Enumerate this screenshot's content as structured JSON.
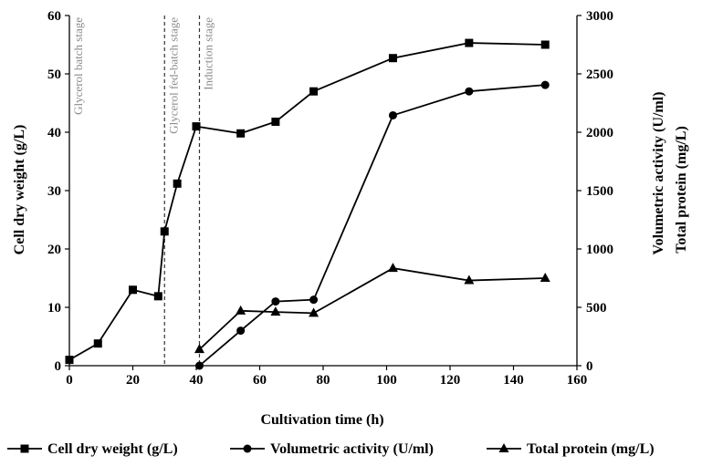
{
  "chart_data": {
    "type": "line",
    "xlabel": "Cultivation time (h)",
    "ylabel_left": "Cell dry weight (g/L)",
    "ylabel_right_1": "Volumetric activity (U/ml)",
    "ylabel_right_2": "Total protein (mg/L)",
    "xlim": [
      0,
      160
    ],
    "ylim_left": [
      0,
      60
    ],
    "ylim_right": [
      0,
      3000
    ],
    "x_ticks": [
      "0",
      "20",
      "40",
      "60",
      "80",
      "100",
      "120",
      "140",
      "160"
    ],
    "y_left_ticks": [
      "0",
      "10",
      "20",
      "30",
      "40",
      "50",
      "60"
    ],
    "y_right_ticks": [
      "0",
      "500",
      "1000",
      "1500",
      "2000",
      "2500",
      "3000"
    ],
    "grid": false,
    "legend_position": "bottom",
    "stages": [
      {
        "label": "Glycerol batch stage",
        "x": 0
      },
      {
        "label": "Glycerol fed-batch stage",
        "x": 30
      },
      {
        "label": "Induction stage",
        "x": 41
      }
    ],
    "series": [
      {
        "name": "Cell dry weight (g/L)",
        "axis": "left",
        "marker": "square",
        "x": [
          0,
          9,
          20,
          28,
          30,
          34,
          40,
          54,
          65,
          77,
          102,
          126,
          150
        ],
        "values": [
          1.0,
          3.8,
          13.0,
          11.9,
          23.0,
          31.2,
          41.0,
          39.8,
          41.8,
          47.0,
          52.7,
          55.3,
          55.0
        ]
      },
      {
        "name": "Volumetric activity (U/ml)",
        "axis": "right",
        "marker": "circle",
        "x": [
          41,
          54,
          65,
          77,
          102,
          126,
          150
        ],
        "values": [
          0,
          300,
          550,
          565,
          2145,
          2350,
          2405
        ]
      },
      {
        "name": "Total protein (mg/L)",
        "axis": "right",
        "marker": "triangle",
        "x": [
          41,
          54,
          65,
          77,
          102,
          126,
          150
        ],
        "values": [
          140,
          470,
          460,
          450,
          835,
          730,
          750
        ]
      }
    ]
  }
}
